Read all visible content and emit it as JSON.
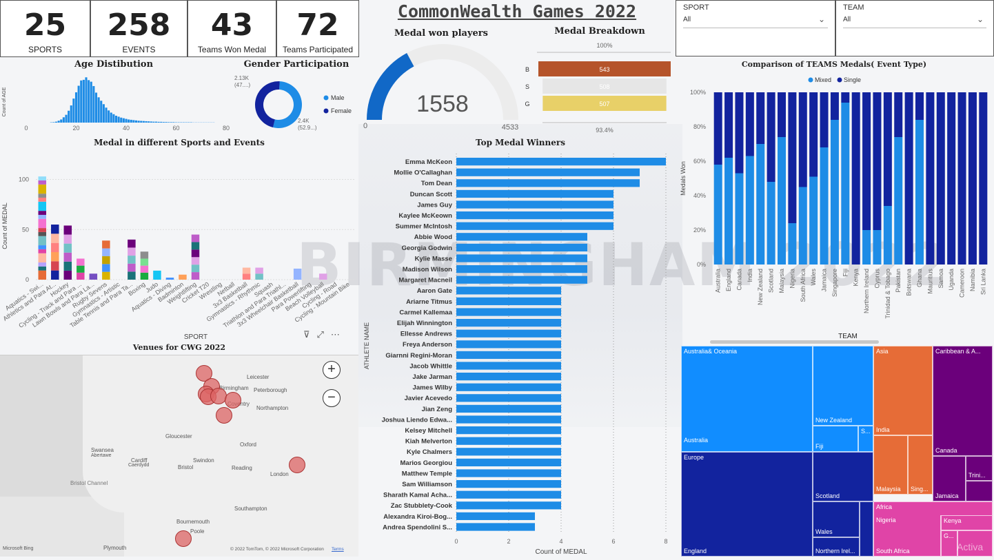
{
  "kpis": [
    {
      "value": "25",
      "label": "SPORTS"
    },
    {
      "value": "258",
      "label": "EVENTS"
    },
    {
      "value": "43",
      "label": "Teams Won Medal"
    },
    {
      "value": "72",
      "label": "Teams Participated"
    }
  ],
  "header": {
    "title": "CommonWealth Games 2022"
  },
  "slicers": {
    "sport": {
      "label": "SPORT",
      "value": "All"
    },
    "team": {
      "label": "TEAM",
      "value": "All"
    }
  },
  "background_text": "BIRMINGHAM 2022",
  "titles": {
    "age": "Age Distibution",
    "gender": "Gender Participation",
    "medal_players": "Medal won players",
    "breakdown": "Medal Breakdown",
    "comparison": "Comparison of TEAMS Medals( Event Type)",
    "sports_events": "Medal in different Sports and Events",
    "top_winners": "Top Medal Winners",
    "venues": "Venues for CWG 2022",
    "team_axis": "TEAM",
    "sport_axis": "SPORT"
  },
  "colors": {
    "primary": "#1e8ce6",
    "dark_blue": "#12239e",
    "bronze": "#b5542a",
    "silver": "#e6e6e6",
    "gold": "#e8d068",
    "orange": "#e66c37",
    "purple": "#6b007b",
    "magenta": "#e044a7",
    "gauge_blue": "#1168c7",
    "map_venue": "#dc6464"
  },
  "chart_data": [
    {
      "type": "bar",
      "title": "Age Distibution",
      "ylabel": "Count of AGE",
      "xlim": [
        0,
        80
      ],
      "x_ticks": [
        0,
        20,
        40,
        60,
        80
      ],
      "x": [
        10,
        11,
        12,
        13,
        14,
        15,
        16,
        17,
        18,
        19,
        20,
        21,
        22,
        23,
        24,
        25,
        26,
        27,
        28,
        29,
        30,
        31,
        32,
        33,
        34,
        35,
        36,
        37,
        38,
        39,
        40,
        41,
        42,
        43,
        44,
        45,
        46,
        47,
        48,
        49,
        50,
        51,
        52,
        53,
        54,
        55,
        56,
        57,
        58,
        59,
        60,
        61,
        62,
        63,
        64,
        65,
        66,
        67,
        68,
        69,
        70,
        71,
        72,
        73,
        74,
        75
      ],
      "values": [
        2,
        3,
        6,
        12,
        20,
        34,
        50,
        76,
        110,
        154,
        194,
        236,
        270,
        274,
        290,
        272,
        262,
        234,
        192,
        162,
        140,
        118,
        96,
        78,
        64,
        54,
        44,
        38,
        32,
        28,
        24,
        20,
        18,
        16,
        14,
        12,
        11,
        10,
        9,
        8,
        7,
        6,
        6,
        5,
        5,
        4,
        4,
        3,
        3,
        3,
        2,
        2,
        2,
        2,
        2,
        2,
        2,
        1,
        1,
        1,
        1,
        1,
        1,
        1,
        1,
        1
      ]
    },
    {
      "type": "pie",
      "title": "Gender Participation",
      "labels": [
        "Male",
        "Female"
      ],
      "values": [
        2400,
        2130
      ],
      "data_labels": [
        "2.4K\n(52.9...)",
        "2.13K\n(47....)"
      ]
    },
    {
      "type": "gauge",
      "title": "Medal won players",
      "value": 1558,
      "min": 0,
      "max": 4533,
      "labels": {
        "value": "1558",
        "min": "0",
        "max": "4533"
      }
    },
    {
      "type": "bar",
      "title": "Medal Breakdown",
      "categories": [
        "B",
        "S",
        "G"
      ],
      "values": [
        543,
        508,
        507
      ],
      "labels": {
        "top": "100%",
        "bottom": "93.4%"
      }
    },
    {
      "type": "bar",
      "title": "Comparison of TEAMS Medals( Event Type)",
      "ylabel": "Medals Won",
      "y_ticks": [
        "0%",
        "20%",
        "40%",
        "60%",
        "80%",
        "100%"
      ],
      "categories": [
        "Australia",
        "England",
        "Canada",
        "India",
        "New Zealand",
        "Scotland",
        "Malaysia",
        "Nigeria",
        "South Africa",
        "Wales",
        "Jamaica",
        "Singapore",
        "Fiji",
        "Kenya",
        "Northern Ireland",
        "Cyprus",
        "Trinidad & Tobago",
        "Pakistan",
        "Botswana",
        "Ghana",
        "Mauritius",
        "Samoa",
        "Uganda",
        "Cameroon",
        "Namibia",
        "Sri Lanka"
      ],
      "series": [
        {
          "name": "Mixed",
          "values": [
            58,
            62,
            53,
            63,
            70,
            48,
            74,
            24,
            45,
            51,
            68,
            84,
            94,
            0,
            20,
            20,
            34,
            74,
            0,
            84,
            0,
            0,
            0,
            0,
            0,
            0
          ]
        },
        {
          "name": "Single",
          "values": [
            42,
            38,
            47,
            37,
            30,
            52,
            26,
            76,
            55,
            49,
            32,
            16,
            6,
            100,
            80,
            80,
            66,
            26,
            100,
            16,
            100,
            100,
            100,
            100,
            100,
            100
          ]
        }
      ]
    },
    {
      "type": "bar",
      "title": "Medal in different Sports and Events",
      "ylabel": "Count of MEDAL",
      "xlabel": "SPORT",
      "y_ticks": [
        0,
        50,
        100
      ],
      "categories": [
        "Aquatics - Swi...",
        "Athletics and Para At...",
        "Hockey",
        "Cycling - Track and Para ...",
        "Lawn Bowls and Para La...",
        "Rugby Sevens",
        "Gymnastics - Artistic",
        "Table Tennis and Para Ta...",
        "Boxing",
        "Judo",
        "Aquatics - Diving",
        "Badminton",
        "Weightlifting",
        "Cricket T20",
        "Wrestling",
        "Netball",
        "3x3 Basketball",
        "Gymnastics - Rhythmic",
        "Squash",
        "Triathlon and Para Triathl...",
        "3x3 Wheelchair Basketball",
        "Para Powerlifting",
        "Beach Volleyball",
        "Cycling - Road",
        "Cycling - Mountain Bike"
      ],
      "values": [
        103,
        55,
        54,
        21,
        6,
        39,
        0,
        40,
        28,
        9,
        2,
        5,
        45,
        0,
        0,
        0,
        12,
        12,
        0,
        0,
        11,
        0,
        6,
        0,
        0
      ]
    },
    {
      "type": "bar",
      "title": "Top Medal Winners",
      "xlabel": "Count of MEDAL",
      "ylabel": "ATHLETE NAME",
      "x_ticks": [
        0,
        2,
        4,
        6,
        8
      ],
      "categories": [
        "Emma McKeon",
        "Mollie O'Callaghan",
        "Tom Dean",
        "Duncan Scott",
        "James Guy",
        "Kaylee McKeown",
        "Summer McIntosh",
        "Abbie Wood",
        "Georgia Godwin",
        "Kylie Masse",
        "Madison Wilson",
        "Margaret Macneil",
        "Aaron Gate",
        "Ariarne Titmus",
        "Carmel Kallemaa",
        "Elijah Winnington",
        "Ellesse Andrews",
        "Freya Anderson",
        "Giarnni Regini-Moran",
        "Jacob Whittle",
        "Jake Jarman",
        "James Wilby",
        "Javier Acevedo",
        "Jian Zeng",
        "Joshua Liendo Edwa...",
        "Kelsey Mitchell",
        "Kiah Melverton",
        "Kyle Chalmers",
        "Marios Georgiou",
        "Matthew Temple",
        "Sam Williamson",
        "Sharath Kamal Acha...",
        "Zac Stubblety-Cook",
        "Alexandra Kiroi-Bog...",
        "Andrea Spendolini S..."
      ],
      "values": [
        8,
        7,
        7,
        6,
        6,
        6,
        6,
        5,
        5,
        5,
        5,
        5,
        4,
        4,
        4,
        4,
        4,
        4,
        4,
        4,
        4,
        4,
        4,
        4,
        4,
        4,
        4,
        4,
        4,
        4,
        4,
        4,
        4,
        3,
        3
      ]
    }
  ],
  "map": {
    "cities": [
      "Leicester",
      "Birmingham",
      "Peterborough",
      "Coventry",
      "Northampton",
      "Gloucester",
      "Oxford",
      "Swansea",
      "Abertawe",
      "Cardiff",
      "Caerdydd",
      "Swindon",
      "Bristol",
      "Reading",
      "London",
      "Bristol Channel",
      "Southampton",
      "Bournemouth",
      "Poole",
      "Plymouth"
    ],
    "attribution": "© 2022 TomTom, © 2022 Microsoft Corporation",
    "terms": "Terms",
    "logo": "Microsoft Bing",
    "zoom_in": "+",
    "zoom_out": "−"
  },
  "treemap": {
    "tiles": [
      "Australia& Oceania",
      "New Zealand",
      "Australia",
      "Fiji",
      "S...",
      "Europe",
      "Scotland",
      "Wales",
      "England",
      "Northern Irel...",
      "Asia",
      "India",
      "Malaysia",
      "Sing...",
      "Caribbean & A...",
      "Canada",
      "Trini...",
      "Jamaica",
      "Africa",
      "Nigeria",
      "Kenya",
      "G...",
      "South Africa"
    ]
  },
  "watermark_text": "Activa"
}
